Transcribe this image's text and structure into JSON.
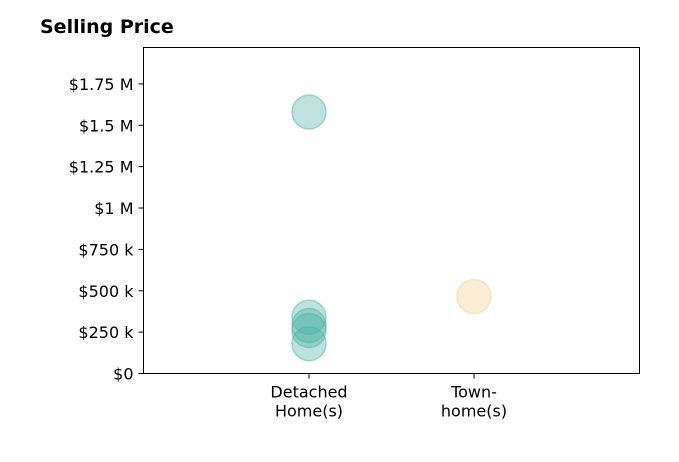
{
  "chart_data": {
    "type": "scatter",
    "title": "Selling Price",
    "xlabel": "",
    "ylabel": "",
    "categories": [
      "Detached\nHome(s)",
      "Town-\nhome(s)"
    ],
    "ylim": [
      0,
      1970000
    ],
    "yticks": [
      {
        "value": 0,
        "label": "$0"
      },
      {
        "value": 250000,
        "label": "$250 k"
      },
      {
        "value": 500000,
        "label": "$500 k"
      },
      {
        "value": 750000,
        "label": "$750 k"
      },
      {
        "value": 1000000,
        "label": "$1 M"
      },
      {
        "value": 1250000,
        "label": "$1.25 M"
      },
      {
        "value": 1500000,
        "label": "$1.5 M"
      },
      {
        "value": 1750000,
        "label": "$1.75 M"
      }
    ],
    "grid": false,
    "series": [
      {
        "category": "Detached\nHome(s)",
        "color": "#45b0a0",
        "values": [
          1580000,
          340000,
          290000,
          260000,
          180000
        ]
      },
      {
        "category": "Town-\nhome(s)",
        "color": "#f2ce8a",
        "values": [
          465000
        ]
      }
    ]
  }
}
